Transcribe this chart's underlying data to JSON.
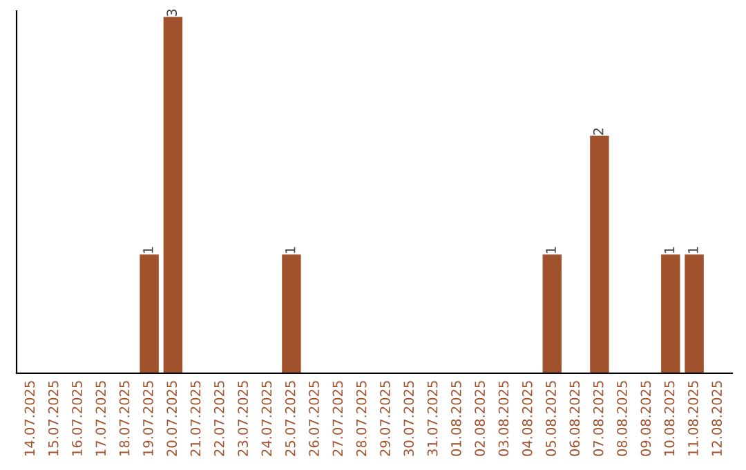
{
  "chart_data": {
    "type": "bar",
    "categories": [
      "14.07.2025",
      "15.07.2025",
      "16.07.2025",
      "17.07.2025",
      "18.07.2025",
      "19.07.2025",
      "20.07.2025",
      "21.07.2025",
      "22.07.2025",
      "23.07.2025",
      "24.07.2025",
      "25.07.2025",
      "26.07.2025",
      "27.07.2025",
      "28.07.2025",
      "29.07.2025",
      "30.07.2025",
      "31.07.2025",
      "01.08.2025",
      "02.08.2025",
      "03.08.2025",
      "04.08.2025",
      "05.08.2025",
      "06.08.2025",
      "07.08.2025",
      "08.08.2025",
      "09.08.2025",
      "10.08.2025",
      "11.08.2025",
      "12.08.2025"
    ],
    "values": [
      null,
      null,
      null,
      null,
      null,
      1,
      3,
      null,
      null,
      null,
      null,
      1,
      null,
      null,
      null,
      null,
      null,
      null,
      null,
      null,
      null,
      null,
      1,
      null,
      2,
      null,
      null,
      1,
      1,
      null
    ],
    "color": "#a0522d",
    "ylim": [
      0,
      3.05
    ],
    "data_labels": true,
    "tick_labels": "x",
    "grid": false,
    "legend": false
  }
}
